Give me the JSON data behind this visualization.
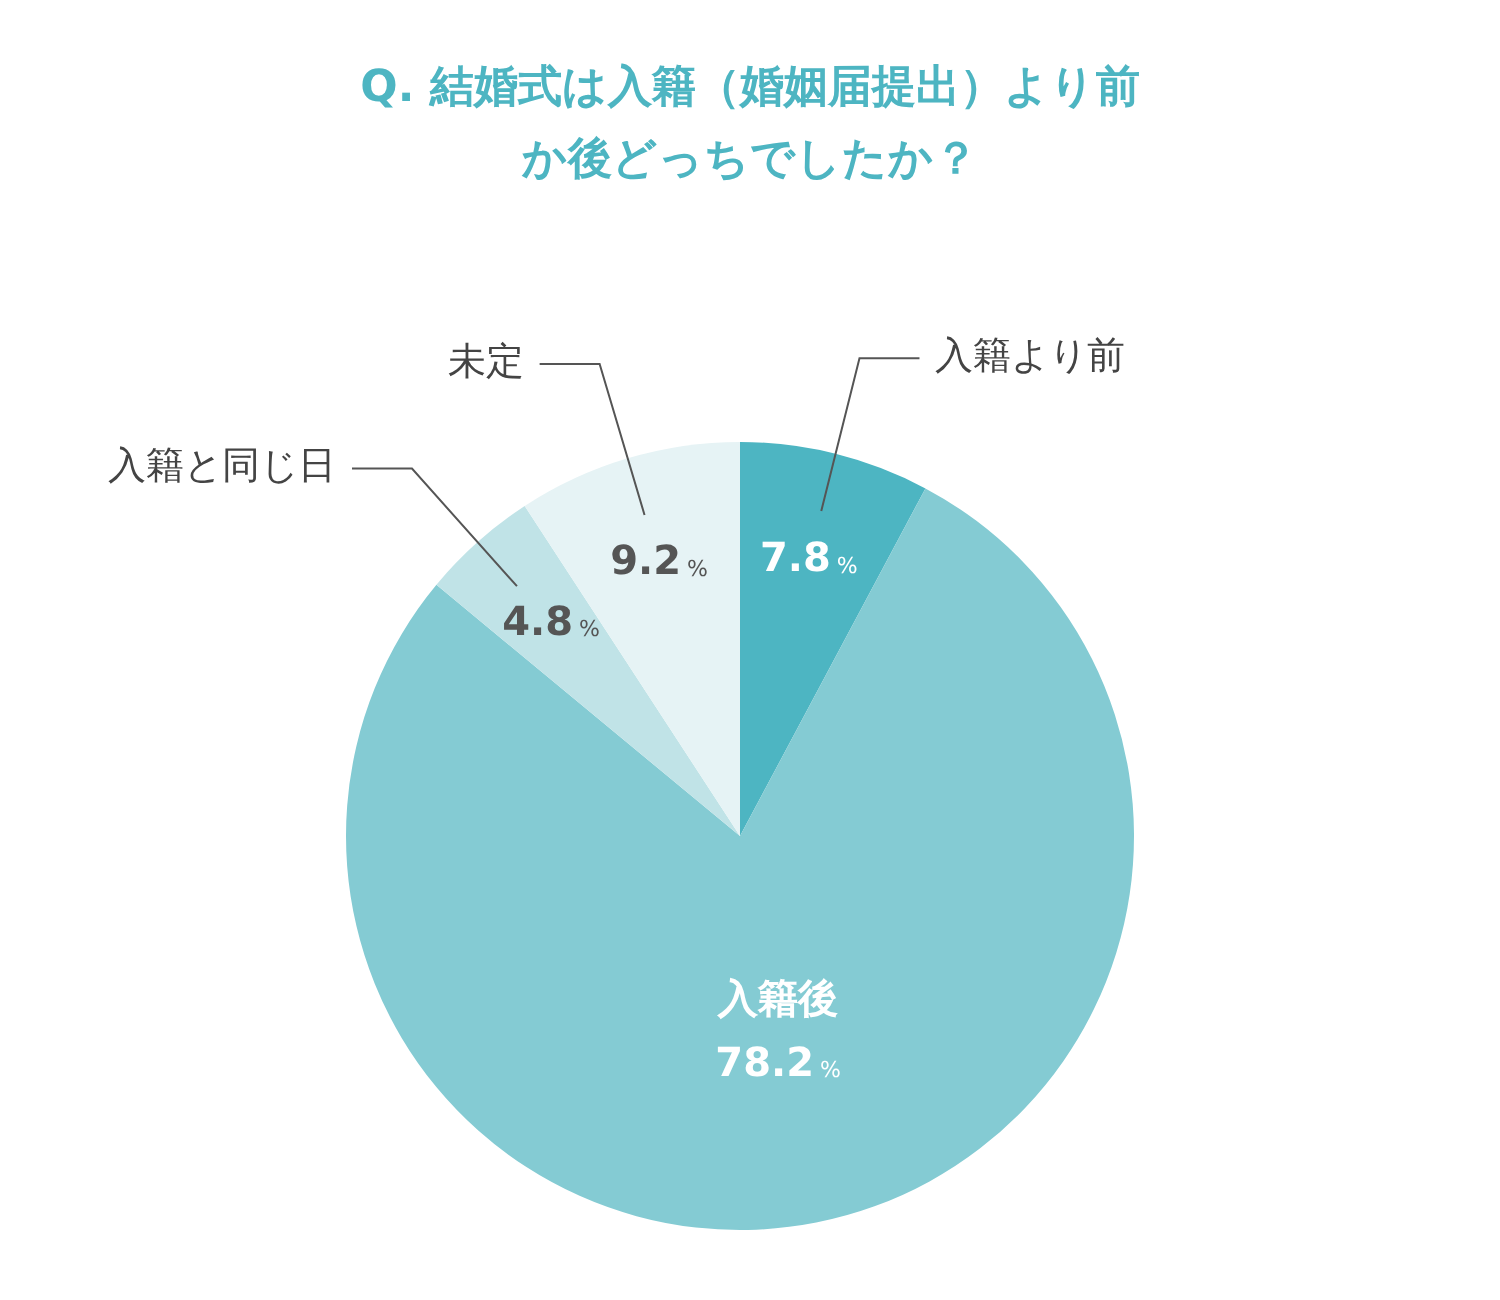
{
  "chart_data": {
    "type": "pie",
    "title": "Q. 結婚式は入籍（婚姻届提出）より前か後どっちでしたか？",
    "categories": [
      "入籍より前",
      "入籍後",
      "入籍と同じ日",
      "未定"
    ],
    "values": [
      7.8,
      78.2,
      4.8,
      9.2
    ],
    "colors": [
      "#4db5c2",
      "#84cbd3",
      "#c0e3e7",
      "#e6f3f5"
    ],
    "value_labels": [
      "7.8%",
      "78.2%",
      "4.8%",
      "9.2%"
    ],
    "legend": false
  }
}
